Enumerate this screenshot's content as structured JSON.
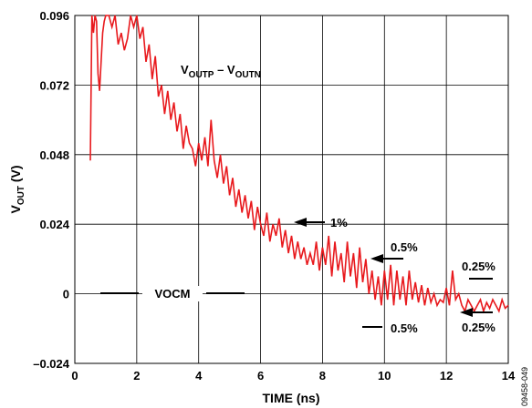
{
  "chart_data": {
    "type": "line",
    "title": "",
    "xlabel": "TIME (ns)",
    "ylabel": {
      "main": "V",
      "sub": "OUT",
      "unit": " (V)"
    },
    "xlim": [
      0,
      14
    ],
    "ylim": [
      -0.024,
      0.096
    ],
    "x_ticks": [
      0,
      2,
      4,
      6,
      8,
      10,
      12,
      14
    ],
    "x_tick_labels": [
      "0",
      "2",
      "4",
      "6",
      "8",
      "10",
      "12",
      "14"
    ],
    "y_ticks": [
      -0.024,
      0,
      0.024,
      0.048,
      0.072,
      0.096
    ],
    "y_tick_labels": [
      "–0.024",
      "0",
      "0.024",
      "0.048",
      "0.072",
      "0.096"
    ],
    "grid": true,
    "series": [
      {
        "name": "",
        "label_parts": {
          "v1": "V",
          "sub1": "OUTP",
          "mid": " – V",
          "sub2": "OUTN"
        },
        "color": "#e8191d",
        "x": [
          0.5,
          0.55,
          0.6,
          0.65,
          0.7,
          0.75,
          0.8,
          0.85,
          0.9,
          0.95,
          1.0,
          1.1,
          1.2,
          1.3,
          1.4,
          1.5,
          1.6,
          1.7,
          1.8,
          1.9,
          2.0,
          2.1,
          2.2,
          2.3,
          2.4,
          2.5,
          2.6,
          2.7,
          2.8,
          2.9,
          3.0,
          3.1,
          3.2,
          3.3,
          3.4,
          3.5,
          3.6,
          3.7,
          3.8,
          3.9,
          4.0,
          4.1,
          4.2,
          4.3,
          4.4,
          4.5,
          4.6,
          4.7,
          4.8,
          4.9,
          5.0,
          5.1,
          5.2,
          5.3,
          5.4,
          5.5,
          5.6,
          5.7,
          5.8,
          5.9,
          6.0,
          6.1,
          6.2,
          6.3,
          6.4,
          6.5,
          6.6,
          6.7,
          6.8,
          6.9,
          7.0,
          7.1,
          7.2,
          7.3,
          7.4,
          7.5,
          7.6,
          7.7,
          7.8,
          7.9,
          8.0,
          8.1,
          8.2,
          8.3,
          8.4,
          8.5,
          8.6,
          8.7,
          8.8,
          8.9,
          9.0,
          9.1,
          9.2,
          9.3,
          9.4,
          9.5,
          9.6,
          9.7,
          9.8,
          9.9,
          10.0,
          10.1,
          10.2,
          10.3,
          10.4,
          10.5,
          10.6,
          10.7,
          10.8,
          10.9,
          11.0,
          11.1,
          11.2,
          11.3,
          11.4,
          11.5,
          11.6,
          11.7,
          11.8,
          11.9,
          12.0,
          12.1,
          12.2,
          12.3,
          12.4,
          12.5,
          12.6,
          12.7,
          12.8,
          12.9,
          13.0,
          13.1,
          13.2,
          13.3,
          13.4,
          13.5,
          13.6,
          13.7,
          13.8,
          13.9,
          14.0
        ],
        "y": [
          0.046,
          0.096,
          0.09,
          0.096,
          0.094,
          0.076,
          0.07,
          0.08,
          0.09,
          0.094,
          0.096,
          0.096,
          0.092,
          0.096,
          0.086,
          0.09,
          0.084,
          0.088,
          0.096,
          0.092,
          0.096,
          0.088,
          0.092,
          0.08,
          0.086,
          0.074,
          0.082,
          0.068,
          0.072,
          0.062,
          0.07,
          0.06,
          0.066,
          0.056,
          0.062,
          0.05,
          0.058,
          0.052,
          0.05,
          0.044,
          0.052,
          0.046,
          0.054,
          0.044,
          0.06,
          0.046,
          0.04,
          0.048,
          0.038,
          0.044,
          0.034,
          0.04,
          0.03,
          0.036,
          0.028,
          0.034,
          0.026,
          0.032,
          0.022,
          0.03,
          0.024,
          0.02,
          0.028,
          0.018,
          0.024,
          0.02,
          0.026,
          0.016,
          0.022,
          0.014,
          0.02,
          0.012,
          0.018,
          0.012,
          0.016,
          0.01,
          0.014,
          0.01,
          0.018,
          0.008,
          0.016,
          0.01,
          0.02,
          0.006,
          0.018,
          0.008,
          0.014,
          0.004,
          0.018,
          0.006,
          0.014,
          0.002,
          0.016,
          0.004,
          0.012,
          0.0,
          0.008,
          -0.002,
          0.006,
          -0.004,
          0.008,
          -0.002,
          0.01,
          -0.004,
          0.008,
          -0.002,
          0.006,
          -0.004,
          0.008,
          -0.002,
          0.004,
          -0.003,
          0.003,
          -0.004,
          0.002,
          -0.003,
          0.0,
          -0.004,
          -0.002,
          -0.003,
          0.002,
          -0.004,
          0.008,
          -0.002,
          0.0,
          -0.004,
          -0.006,
          -0.002,
          -0.004,
          -0.006,
          -0.004,
          -0.002,
          -0.006,
          -0.003,
          -0.005,
          -0.002,
          -0.004,
          -0.006,
          -0.002,
          -0.005,
          -0.004
        ]
      }
    ],
    "annotations": {
      "vocm": {
        "label": "VOCM"
      },
      "one_pct": {
        "label": "1%"
      },
      "half_pct_upper": {
        "label": "0.5%"
      },
      "half_pct_lower": {
        "label": "0.5%"
      },
      "quarter_pct_upper": {
        "label": "0.25%"
      },
      "quarter_pct_lower": {
        "label": "0.25%"
      }
    },
    "figure_id": "09458-049"
  }
}
